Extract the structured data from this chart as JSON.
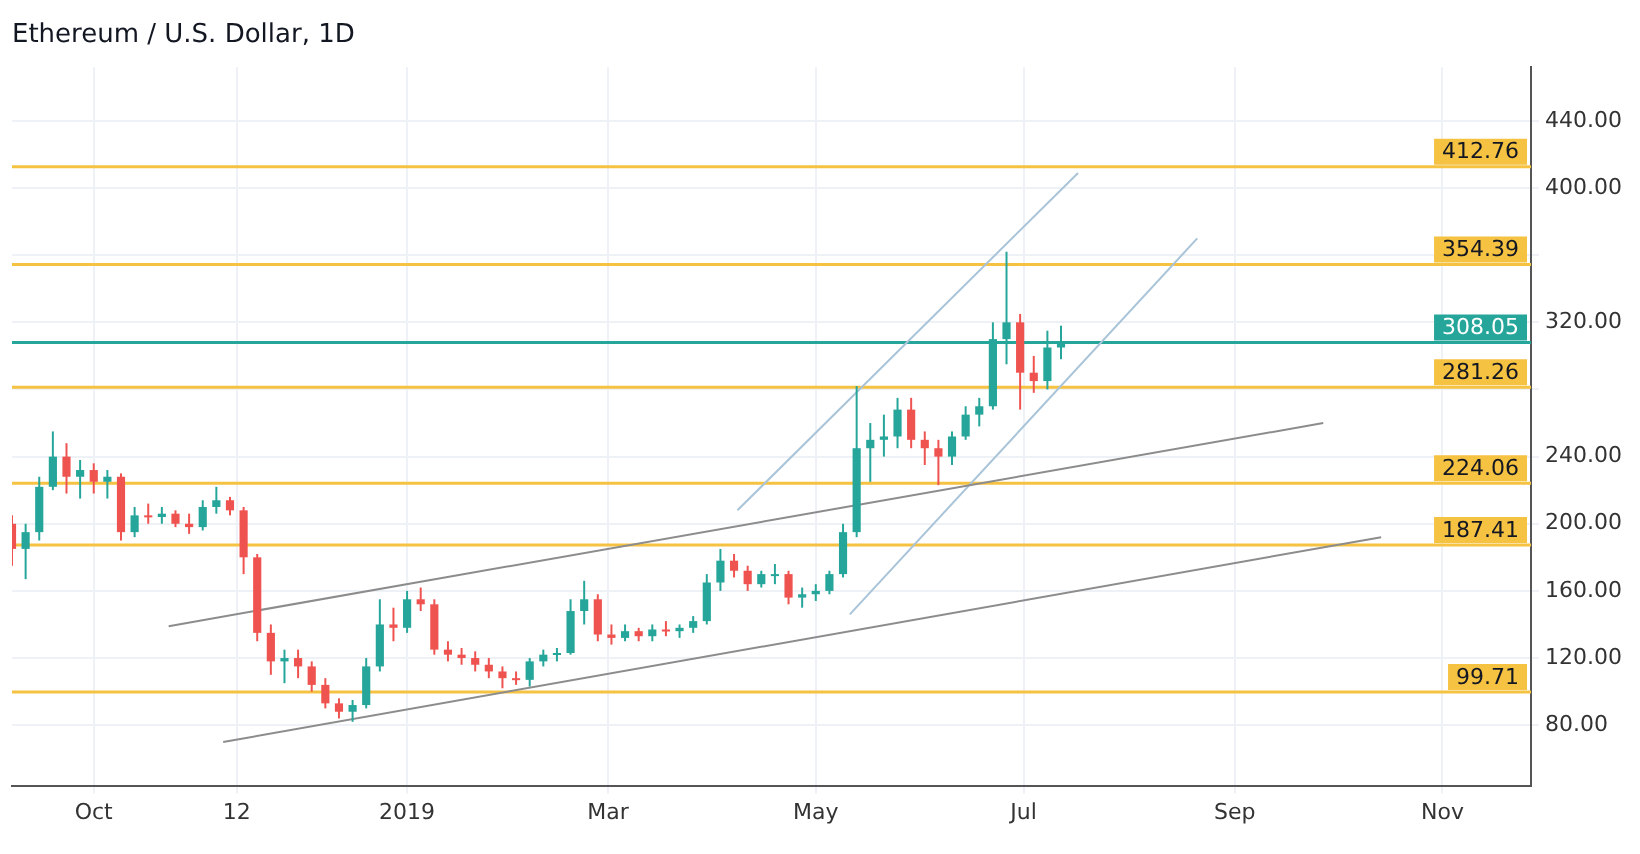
{
  "chart_data": {
    "type": "candlestick",
    "title": "Ethereum / U.S. Dollar, 1D",
    "x": [
      "2018-09-07",
      "2018-09-11",
      "2018-09-15",
      "2018-09-19",
      "2018-09-23",
      "2018-09-27",
      "2018-10-01",
      "2018-10-05",
      "2018-10-09",
      "2018-10-13",
      "2018-10-17",
      "2018-10-21",
      "2018-10-25",
      "2018-10-29",
      "2018-11-02",
      "2018-11-06",
      "2018-11-10",
      "2018-11-14",
      "2018-11-18",
      "2018-11-22",
      "2018-11-26",
      "2018-11-30",
      "2018-12-04",
      "2018-12-08",
      "2018-12-12",
      "2018-12-16",
      "2018-12-20",
      "2018-12-24",
      "2018-12-28",
      "2019-01-01",
      "2019-01-05",
      "2019-01-09",
      "2019-01-13",
      "2019-01-17",
      "2019-01-21",
      "2019-01-25",
      "2019-01-29",
      "2019-02-02",
      "2019-02-06",
      "2019-02-10",
      "2019-02-14",
      "2019-02-18",
      "2019-02-22",
      "2019-02-26",
      "2019-03-02",
      "2019-03-06",
      "2019-03-10",
      "2019-03-14",
      "2019-03-18",
      "2019-03-22",
      "2019-03-26",
      "2019-03-30",
      "2019-04-03",
      "2019-04-07",
      "2019-04-11",
      "2019-04-15",
      "2019-04-19",
      "2019-04-23",
      "2019-04-27",
      "2019-05-01",
      "2019-05-05",
      "2019-05-09",
      "2019-05-13",
      "2019-05-17",
      "2019-05-21",
      "2019-05-25",
      "2019-05-29",
      "2019-06-02",
      "2019-06-06",
      "2019-06-10",
      "2019-06-14",
      "2019-06-18",
      "2019-06-22",
      "2019-06-26",
      "2019-06-30",
      "2019-07-04",
      "2019-07-08",
      "2019-07-12"
    ],
    "ohlc": [
      [
        200,
        205,
        175,
        185
      ],
      [
        185,
        200,
        167,
        195
      ],
      [
        195,
        228,
        190,
        222
      ],
      [
        222,
        255,
        220,
        240
      ],
      [
        240,
        248,
        218,
        228
      ],
      [
        228,
        238,
        215,
        232
      ],
      [
        232,
        236,
        218,
        225
      ],
      [
        225,
        232,
        215,
        228
      ],
      [
        228,
        230,
        190,
        195
      ],
      [
        195,
        210,
        192,
        205
      ],
      [
        205,
        212,
        200,
        204
      ],
      [
        204,
        210,
        200,
        206
      ],
      [
        206,
        208,
        198,
        200
      ],
      [
        200,
        206,
        194,
        198
      ],
      [
        198,
        214,
        196,
        210
      ],
      [
        210,
        222,
        206,
        214
      ],
      [
        214,
        216,
        205,
        208
      ],
      [
        208,
        210,
        170,
        180
      ],
      [
        180,
        182,
        130,
        135
      ],
      [
        135,
        140,
        110,
        118
      ],
      [
        118,
        125,
        105,
        120
      ],
      [
        120,
        125,
        108,
        115
      ],
      [
        115,
        118,
        100,
        104
      ],
      [
        104,
        108,
        90,
        93
      ],
      [
        93,
        96,
        84,
        88
      ],
      [
        88,
        95,
        82,
        92
      ],
      [
        92,
        120,
        90,
        115
      ],
      [
        115,
        155,
        112,
        140
      ],
      [
        140,
        150,
        130,
        138
      ],
      [
        138,
        160,
        135,
        155
      ],
      [
        155,
        162,
        148,
        152
      ],
      [
        152,
        155,
        122,
        125
      ],
      [
        125,
        130,
        118,
        122
      ],
      [
        122,
        126,
        116,
        120
      ],
      [
        120,
        124,
        112,
        116
      ],
      [
        116,
        120,
        108,
        112
      ],
      [
        112,
        115,
        102,
        108
      ],
      [
        108,
        112,
        104,
        107
      ],
      [
        107,
        120,
        103,
        118
      ],
      [
        118,
        125,
        115,
        122
      ],
      [
        122,
        126,
        118,
        123
      ],
      [
        123,
        155,
        122,
        148
      ],
      [
        148,
        166,
        140,
        155
      ],
      [
        155,
        158,
        130,
        134
      ],
      [
        134,
        140,
        128,
        132
      ],
      [
        132,
        140,
        130,
        136
      ],
      [
        136,
        138,
        130,
        133
      ],
      [
        133,
        140,
        130,
        137
      ],
      [
        137,
        142,
        133,
        136
      ],
      [
        136,
        140,
        132,
        138
      ],
      [
        138,
        145,
        135,
        142
      ],
      [
        142,
        170,
        140,
        165
      ],
      [
        165,
        185,
        160,
        178
      ],
      [
        178,
        182,
        168,
        172
      ],
      [
        172,
        175,
        160,
        164
      ],
      [
        164,
        172,
        162,
        170
      ],
      [
        170,
        176,
        164,
        170
      ],
      [
        170,
        172,
        152,
        156
      ],
      [
        156,
        162,
        150,
        158
      ],
      [
        158,
        164,
        154,
        160
      ],
      [
        160,
        172,
        158,
        170
      ],
      [
        170,
        200,
        168,
        195
      ],
      [
        195,
        282,
        192,
        245
      ],
      [
        245,
        260,
        225,
        250
      ],
      [
        250,
        265,
        240,
        252
      ],
      [
        252,
        275,
        245,
        268
      ],
      [
        268,
        275,
        245,
        250
      ],
      [
        250,
        255,
        235,
        245
      ],
      [
        245,
        250,
        223,
        240
      ],
      [
        240,
        255,
        235,
        252
      ],
      [
        252,
        270,
        250,
        265
      ],
      [
        265,
        275,
        258,
        270
      ],
      [
        270,
        320,
        268,
        310
      ],
      [
        310,
        362,
        295,
        320
      ],
      [
        320,
        325,
        268,
        290
      ],
      [
        290,
        300,
        278,
        285
      ],
      [
        285,
        315,
        280,
        305
      ],
      [
        305,
        318,
        298,
        308
      ]
    ],
    "colors": [
      "#ef5350",
      "#26a69a",
      "#26a69a",
      "#26a69a",
      "#ef5350",
      "#26a69a",
      "#ef5350",
      "#26a69a",
      "#ef5350",
      "#26a69a",
      "#ef5350",
      "#26a69a",
      "#ef5350",
      "#ef5350",
      "#26a69a",
      "#26a69a",
      "#ef5350",
      "#ef5350",
      "#ef5350",
      "#ef5350",
      "#26a69a",
      "#ef5350",
      "#ef5350",
      "#ef5350",
      "#ef5350",
      "#26a69a",
      "#26a69a",
      "#26a69a",
      "#ef5350",
      "#26a69a",
      "#ef5350",
      "#ef5350",
      "#ef5350",
      "#ef5350",
      "#ef5350",
      "#ef5350",
      "#ef5350",
      "#ef5350",
      "#26a69a",
      "#26a69a",
      "#26a69a",
      "#26a69a",
      "#26a69a",
      "#ef5350",
      "#ef5350",
      "#26a69a",
      "#ef5350",
      "#26a69a",
      "#ef5350",
      "#26a69a",
      "#26a69a",
      "#26a69a",
      "#26a69a",
      "#ef5350",
      "#ef5350",
      "#26a69a",
      "#26a69a",
      "#ef5350",
      "#26a69a",
      "#26a69a",
      "#26a69a",
      "#26a69a",
      "#26a69a",
      "#26a69a",
      "#26a69a",
      "#26a69a",
      "#ef5350",
      "#ef5350",
      "#ef5350",
      "#26a69a",
      "#26a69a",
      "#26a69a",
      "#26a69a",
      "#26a69a",
      "#ef5350",
      "#ef5350",
      "#26a69a",
      "#26a69a"
    ],
    "series": [
      {
        "type": "line",
        "color": "#8c8c8c",
        "x": [
          "2018-10-23",
          "2019-09-27"
        ],
        "values": [
          139,
          260
        ]
      },
      {
        "type": "line",
        "color": "#8c8c8c",
        "x": [
          "2018-11-08",
          "2019-10-14"
        ],
        "values": [
          70,
          192
        ]
      },
      {
        "type": "line",
        "color": "#a9c4d8",
        "x": [
          "2019-04-08",
          "2019-07-17"
        ],
        "values": [
          208,
          409
        ]
      },
      {
        "type": "line",
        "color": "#a9c4d8",
        "x": [
          "2019-05-11",
          "2019-08-21"
        ],
        "values": [
          146,
          370
        ]
      }
    ],
    "ref_lines": [
      {
        "axis": "y",
        "value": 412.76,
        "label": "412.76",
        "color": "#f5c242"
      },
      {
        "axis": "y",
        "value": 354.39,
        "label": "354.39",
        "color": "#f5c242"
      },
      {
        "axis": "y",
        "value": 308.05,
        "label": "308.05",
        "color": "#26a69a"
      },
      {
        "axis": "y",
        "value": 281.26,
        "label": "281.26",
        "color": "#f5c242"
      },
      {
        "axis": "y",
        "value": 224.06,
        "label": "224.06",
        "color": "#f5c242"
      },
      {
        "axis": "y",
        "value": 187.41,
        "label": "187.41",
        "color": "#f5c242"
      },
      {
        "axis": "y",
        "value": 99.71,
        "label": "99.71",
        "color": "#f5c242"
      }
    ],
    "xlim": [
      "2018-09-07",
      "2019-11-27"
    ],
    "xticks": [
      {
        "value": "2018-10-01",
        "label": "Oct"
      },
      {
        "value": "2018-11-12",
        "label": "12"
      },
      {
        "value": "2019-01-01",
        "label": "2019"
      },
      {
        "value": "2019-03-01",
        "label": "Mar"
      },
      {
        "value": "2019-05-01",
        "label": "May"
      },
      {
        "value": "2019-07-01",
        "label": "Jul"
      },
      {
        "value": "2019-09-01",
        "label": "Sep"
      },
      {
        "value": "2019-11-01",
        "label": "Nov"
      }
    ],
    "ylim": [
      44,
      472
    ],
    "yticks": [
      {
        "value": 80,
        "label": "80.00"
      },
      {
        "value": 120,
        "label": "120.00"
      },
      {
        "value": 160,
        "label": "160.00"
      },
      {
        "value": 200,
        "label": "200.00"
      },
      {
        "value": 240,
        "label": "240.00"
      },
      {
        "value": 280,
        "label": null
      },
      {
        "value": 320,
        "label": "320.00"
      },
      {
        "value": 360,
        "label": null
      },
      {
        "value": 400,
        "label": "400.00"
      },
      {
        "value": 440,
        "label": "440.00"
      }
    ],
    "grid": true,
    "marker": "none"
  }
}
